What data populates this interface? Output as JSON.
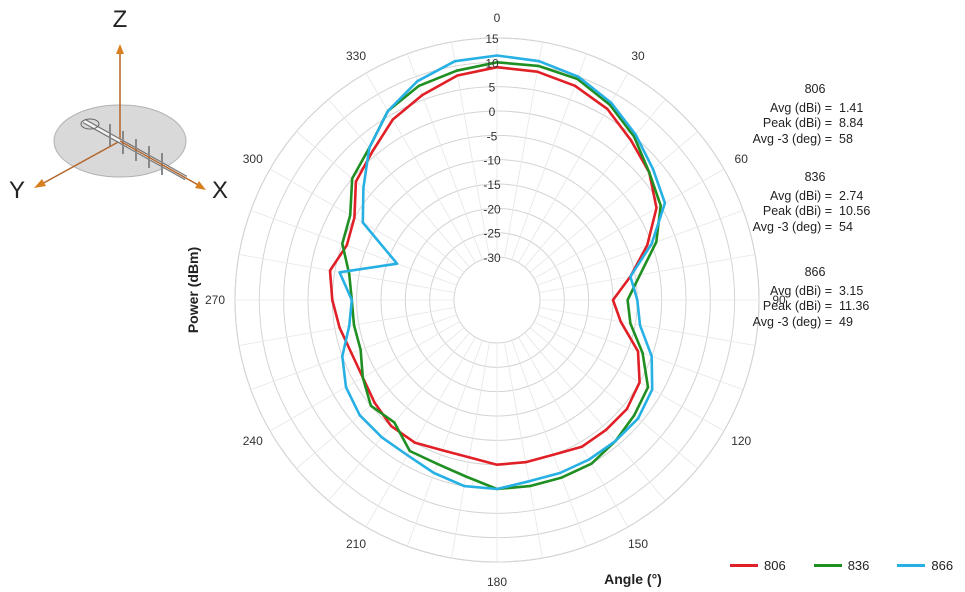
{
  "chart_data": {
    "type": "polar-line",
    "xlabel": "Angle (°)",
    "ylabel": "Power (dBm)",
    "r_range": [
      -30,
      15
    ],
    "r_ticks": [
      15,
      10,
      5,
      0,
      -5,
      -10,
      -15,
      -20,
      -25,
      -30
    ],
    "angle_ticks": [
      0,
      30,
      60,
      90,
      120,
      150,
      180,
      210,
      240,
      270,
      300,
      330
    ],
    "angle_direction": "clockwise",
    "angle_zero": "top",
    "legend_position": "bottom-right",
    "grid": true,
    "angles": [
      0,
      10,
      20,
      30,
      40,
      50,
      60,
      70,
      80,
      90,
      100,
      110,
      120,
      130,
      140,
      150,
      160,
      170,
      180,
      190,
      200,
      210,
      220,
      230,
      240,
      250,
      260,
      270,
      280,
      290,
      300,
      310,
      320,
      330,
      340,
      350
    ],
    "series": [
      {
        "name": "806",
        "color": "#e01f26",
        "values": [
          9,
          8.8,
          8,
          6.5,
          4,
          2,
          -1,
          -6,
          -11,
          -15,
          -13,
          -8,
          -5,
          -4,
          -4,
          -4,
          -5,
          -5,
          -5,
          -6,
          -6,
          -5,
          -5,
          -6,
          -7,
          -7,
          -6,
          -5,
          -4,
          -6,
          -5,
          -1,
          1,
          4,
          6,
          8
        ]
      },
      {
        "name": "836",
        "color": "#1f8f22",
        "values": [
          10,
          10,
          9.5,
          7.5,
          5,
          2,
          0,
          -4,
          -9,
          -12,
          -11,
          -7,
          -3,
          -2,
          -1,
          0,
          0,
          0,
          0,
          -2,
          -3,
          -3,
          -6,
          -5,
          -7,
          -9,
          -9,
          -9,
          -8,
          -5,
          -4,
          0,
          2,
          6,
          8,
          9
        ]
      },
      {
        "name": "866",
        "color": "#27b0e4",
        "values": [
          11.4,
          11,
          10,
          8,
          5.5,
          3,
          1,
          -5,
          -11,
          -10,
          -9,
          -5,
          -2,
          -1,
          -1,
          -1,
          -1,
          -1,
          0,
          0,
          -1,
          -2,
          -2,
          -2,
          -3,
          -5,
          -8,
          -9,
          -6,
          -17,
          -7,
          -3,
          2,
          6,
          9,
          11
        ]
      }
    ]
  },
  "stats": [
    {
      "name": "806",
      "rows": [
        {
          "label": "Avg (dBi) =",
          "value": "1.41"
        },
        {
          "label": "Peak (dBi) =",
          "value": "8.84"
        },
        {
          "label": "Avg -3 (deg) =",
          "value": "58"
        }
      ]
    },
    {
      "name": "836",
      "rows": [
        {
          "label": "Avg (dBi) =",
          "value": "2.74"
        },
        {
          "label": "Peak (dBi) =",
          "value": "10.56"
        },
        {
          "label": "Avg -3 (deg) =",
          "value": "54"
        }
      ]
    },
    {
      "name": "866",
      "rows": [
        {
          "label": "Avg (dBi) =",
          "value": "3.15"
        },
        {
          "label": "Peak (dBi) =",
          "value": "11.36"
        },
        {
          "label": "Avg -3 (deg) =",
          "value": "49"
        }
      ]
    }
  ],
  "axes_diagram": {
    "z": "Z",
    "y": "Y",
    "x": "X",
    "axis_color": "#b3652a"
  }
}
